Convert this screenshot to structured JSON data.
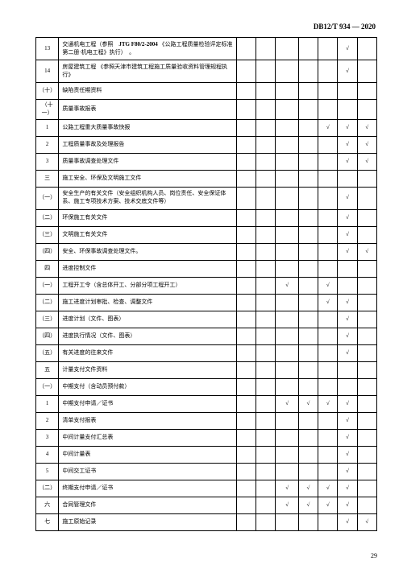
{
  "header": "DB12/T 934 — 2020",
  "page_number": "29",
  "check": "√",
  "rows": [
    {
      "num": "13",
      "desc": "交通机电工程（参照　JTG F80/2-2004 《公路工程质量检验评定标准　第二册·机电工程》执行）　。",
      "c": [
        "",
        "",
        "",
        "",
        "",
        "√",
        ""
      ],
      "tall": true,
      "bold_seg": "JTG F80/2-2004"
    },
    {
      "num": "14",
      "desc": "房屋建筑工程 《参照天津市建筑工程施工质量验收资料管理规程执行》",
      "c": [
        "",
        "",
        "",
        "",
        "",
        "√",
        ""
      ],
      "tall": true
    },
    {
      "num": "（十）",
      "desc": "缺陷责任期资料",
      "c": [
        "",
        "",
        "",
        "",
        "",
        "",
        ""
      ]
    },
    {
      "num": "（十一）",
      "desc": "质量事故报表",
      "c": [
        "",
        "",
        "",
        "",
        "",
        "",
        ""
      ]
    },
    {
      "num": "1",
      "desc": "公路工程重大质量事故快报",
      "c": [
        "",
        "",
        "",
        "",
        "√",
        "√",
        "√"
      ]
    },
    {
      "num": "2",
      "desc": "工程质量事故及处理报告",
      "c": [
        "",
        "",
        "",
        "",
        "",
        "√",
        "√"
      ]
    },
    {
      "num": "3",
      "desc": "质量事故调查处理文件",
      "c": [
        "",
        "",
        "",
        "",
        "",
        "√",
        "√"
      ]
    },
    {
      "num": "三",
      "desc": "施工安全、环保及文明施工文件",
      "c": [
        "",
        "",
        "",
        "",
        "",
        "",
        ""
      ]
    },
    {
      "num": "（一）",
      "desc": "安全生产的有关文件（安全组织机构人员、岗位责任、安全保证体系、施工专项技术方案、技术交底文件等）",
      "c": [
        "",
        "",
        "",
        "",
        "",
        "√",
        ""
      ],
      "tall": true
    },
    {
      "num": "（二）",
      "desc": "环保施工有关文件",
      "c": [
        "",
        "",
        "",
        "",
        "",
        "√",
        ""
      ]
    },
    {
      "num": "（三）",
      "desc": "文明施工有关文件",
      "c": [
        "",
        "",
        "",
        "",
        "",
        "√",
        ""
      ]
    },
    {
      "num": "（四）",
      "desc": "安全、环保事故调查处理文件。",
      "c": [
        "",
        "",
        "",
        "",
        "",
        "√",
        "√"
      ]
    },
    {
      "num": "四",
      "desc": "进度控制文件",
      "c": [
        "",
        "",
        "",
        "",
        "",
        "",
        ""
      ]
    },
    {
      "num": "（一）",
      "desc": "工程开工令（含总体开工、分部分项工程开工）",
      "c": [
        "",
        "",
        "√",
        "",
        "√",
        "",
        ""
      ]
    },
    {
      "num": "（二）",
      "desc": "施工进度计划审批、检查、调整文件",
      "c": [
        "",
        "",
        "",
        "",
        "√",
        "√",
        ""
      ]
    },
    {
      "num": "（三）",
      "desc": "进度计划（文件、图表）",
      "c": [
        "",
        "",
        "",
        "",
        "",
        "√",
        ""
      ]
    },
    {
      "num": "（四）",
      "desc": "进度执行情况（文件、图表）",
      "c": [
        "",
        "",
        "",
        "",
        "",
        "√",
        ""
      ]
    },
    {
      "num": "（五）",
      "desc": "有关进度的往来文件",
      "c": [
        "",
        "",
        "",
        "",
        "",
        "√",
        ""
      ]
    },
    {
      "num": "五",
      "desc": "计量支付文件资料",
      "c": [
        "",
        "",
        "",
        "",
        "",
        "",
        ""
      ]
    },
    {
      "num": "（一）",
      "desc": "中期支付（含动员预付款）",
      "c": [
        "",
        "",
        "",
        "",
        "",
        "",
        ""
      ]
    },
    {
      "num": "1",
      "desc": "中期支付申请／证书",
      "c": [
        "",
        "",
        "√",
        "√",
        "√",
        "√",
        ""
      ]
    },
    {
      "num": "2",
      "desc": "清单支付报表",
      "c": [
        "",
        "",
        "",
        "",
        "",
        "√",
        ""
      ]
    },
    {
      "num": "3",
      "desc": "中间计量支付汇总表",
      "c": [
        "",
        "",
        "",
        "",
        "",
        "√",
        ""
      ]
    },
    {
      "num": "4",
      "desc": "中间计量表",
      "c": [
        "",
        "",
        "",
        "",
        "",
        "√",
        ""
      ]
    },
    {
      "num": "5",
      "desc": "中间交工证书",
      "c": [
        "",
        "",
        "",
        "",
        "",
        "√",
        ""
      ]
    },
    {
      "num": "（二）",
      "desc": "终期支付申请／证书",
      "c": [
        "",
        "",
        "√",
        "√",
        "√",
        "√",
        ""
      ]
    },
    {
      "num": "六",
      "desc": "合同管理文件",
      "c": [
        "",
        "",
        "√",
        "√",
        "√",
        "√",
        ""
      ]
    },
    {
      "num": "七",
      "desc": "施工原始记录",
      "c": [
        "",
        "",
        "",
        "",
        "",
        "√",
        "√"
      ]
    }
  ]
}
